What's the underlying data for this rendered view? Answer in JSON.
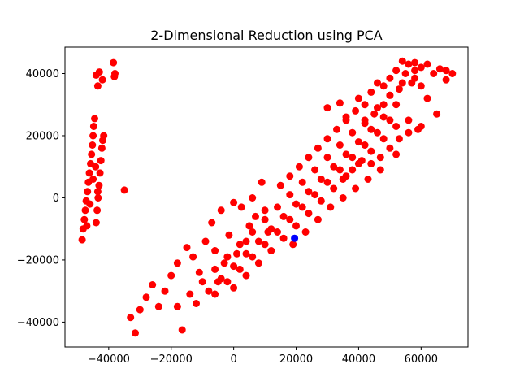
{
  "chart_data": {
    "type": "scatter",
    "title": "2-Dimensional Reduction using PCA",
    "xlabel": "",
    "ylabel": "",
    "xlim": [
      -54000,
      75000
    ],
    "ylim": [
      -48000,
      48500
    ],
    "xticks": [
      -40000,
      -20000,
      0,
      20000,
      40000,
      60000
    ],
    "yticks": [
      -40000,
      -20000,
      0,
      20000,
      40000
    ],
    "grid": false,
    "series": [
      {
        "color": "#ff0000",
        "points": [
          [
            -48500,
            -13500
          ],
          [
            -48200,
            -10000
          ],
          [
            -47800,
            -7000
          ],
          [
            -47500,
            -4000
          ],
          [
            -47200,
            -1000
          ],
          [
            -46800,
            2000
          ],
          [
            -46500,
            5000
          ],
          [
            -46200,
            8000
          ],
          [
            -45800,
            11000
          ],
          [
            -45500,
            14000
          ],
          [
            -45200,
            17000
          ],
          [
            -45000,
            20000
          ],
          [
            -44800,
            23000
          ],
          [
            -44500,
            25500
          ],
          [
            -44000,
            -8000
          ],
          [
            -43700,
            -4000
          ],
          [
            -43400,
            0
          ],
          [
            -43100,
            4000
          ],
          [
            -42800,
            8000
          ],
          [
            -42500,
            12000
          ],
          [
            -42200,
            16000
          ],
          [
            -41900,
            18500
          ],
          [
            -41600,
            20000
          ],
          [
            -47000,
            -9000
          ],
          [
            -46000,
            -2000
          ],
          [
            -45000,
            6000
          ],
          [
            -44200,
            10000
          ],
          [
            -43500,
            2000
          ],
          [
            -44000,
            39500
          ],
          [
            -43500,
            36000
          ],
          [
            -43000,
            40500
          ],
          [
            -42000,
            38000
          ],
          [
            -38500,
            43500
          ],
          [
            -38000,
            40000
          ],
          [
            -38200,
            39000
          ],
          [
            -35000,
            2500
          ],
          [
            -33000,
            -38500
          ],
          [
            -31500,
            -43500
          ],
          [
            -30000,
            -36000
          ],
          [
            -28000,
            -32000
          ],
          [
            -26000,
            -28000
          ],
          [
            -24000,
            -35000
          ],
          [
            -22000,
            -30000
          ],
          [
            -20000,
            -25000
          ],
          [
            -18000,
            -21000
          ],
          [
            -16500,
            -42500
          ],
          [
            -15000,
            -16000
          ],
          [
            -13000,
            -19000
          ],
          [
            -11000,
            -24000
          ],
          [
            -9000,
            -14000
          ],
          [
            -7000,
            -8000
          ],
          [
            -6000,
            -17000
          ],
          [
            -5000,
            -27000
          ],
          [
            -4000,
            -4000
          ],
          [
            -3000,
            -21000
          ],
          [
            -1500,
            -12000
          ],
          [
            0,
            -1500
          ],
          [
            1000,
            -18000
          ],
          [
            2500,
            -3000
          ],
          [
            4000,
            -14000
          ],
          [
            5000,
            -9000
          ],
          [
            6000,
            0
          ],
          [
            7000,
            -6000
          ],
          [
            9000,
            5000
          ],
          [
            10000,
            -4000
          ],
          [
            11000,
            -11000
          ],
          [
            -18000,
            -35000
          ],
          [
            -14000,
            -31000
          ],
          [
            -10000,
            -27000
          ],
          [
            -6000,
            -23000
          ],
          [
            -2000,
            -19000
          ],
          [
            2000,
            -15000
          ],
          [
            6000,
            -11000
          ],
          [
            10000,
            -7000
          ],
          [
            14000,
            -3000
          ],
          [
            18000,
            1000
          ],
          [
            22000,
            5000
          ],
          [
            26000,
            9000
          ],
          [
            30000,
            13000
          ],
          [
            34000,
            17000
          ],
          [
            38000,
            21000
          ],
          [
            42000,
            25000
          ],
          [
            46000,
            29000
          ],
          [
            50000,
            33000
          ],
          [
            54000,
            37000
          ],
          [
            58000,
            41000
          ],
          [
            -12000,
            -34000
          ],
          [
            -8000,
            -30000
          ],
          [
            -4000,
            -26000
          ],
          [
            0,
            -22000
          ],
          [
            4000,
            -18000
          ],
          [
            8000,
            -14000
          ],
          [
            12000,
            -10000
          ],
          [
            16000,
            -6000
          ],
          [
            20000,
            -2000
          ],
          [
            24000,
            2000
          ],
          [
            28000,
            6000
          ],
          [
            32000,
            10000
          ],
          [
            36000,
            14000
          ],
          [
            40000,
            18000
          ],
          [
            44000,
            22000
          ],
          [
            48000,
            26000
          ],
          [
            52000,
            30000
          ],
          [
            -6000,
            -31000
          ],
          [
            -2000,
            -27000
          ],
          [
            2000,
            -23000
          ],
          [
            6000,
            -19000
          ],
          [
            10000,
            -15000
          ],
          [
            14000,
            -11000
          ],
          [
            18000,
            -7000
          ],
          [
            22000,
            -3000
          ],
          [
            26000,
            1000
          ],
          [
            30000,
            5000
          ],
          [
            34000,
            9000
          ],
          [
            38000,
            13000
          ],
          [
            42000,
            17000
          ],
          [
            46000,
            21000
          ],
          [
            50000,
            25000
          ],
          [
            0,
            -29000
          ],
          [
            4000,
            -25000
          ],
          [
            8000,
            -21000
          ],
          [
            12000,
            -17000
          ],
          [
            16000,
            -13000
          ],
          [
            20000,
            -9000
          ],
          [
            24000,
            -5000
          ],
          [
            28000,
            -1000
          ],
          [
            32000,
            3000
          ],
          [
            36000,
            7000
          ],
          [
            40000,
            11000
          ],
          [
            44000,
            15000
          ],
          [
            48000,
            19000
          ],
          [
            15000,
            4000
          ],
          [
            18000,
            7000
          ],
          [
            21000,
            10000
          ],
          [
            24000,
            13000
          ],
          [
            27000,
            16000
          ],
          [
            30000,
            19000
          ],
          [
            33000,
            22000
          ],
          [
            36000,
            25000
          ],
          [
            39000,
            28000
          ],
          [
            42000,
            24000
          ],
          [
            45000,
            27000
          ],
          [
            48000,
            30000
          ],
          [
            52000,
            23000
          ],
          [
            56000,
            25000
          ],
          [
            59000,
            22000
          ],
          [
            60000,
            23000
          ],
          [
            35000,
            6000
          ],
          [
            38000,
            9000
          ],
          [
            41000,
            12000
          ],
          [
            44000,
            11000
          ],
          [
            47000,
            13000
          ],
          [
            50000,
            16000
          ],
          [
            53000,
            19000
          ],
          [
            56000,
            21000
          ],
          [
            52000,
            14000
          ],
          [
            47000,
            9000
          ],
          [
            43000,
            6000
          ],
          [
            39000,
            3000
          ],
          [
            35000,
            0
          ],
          [
            31000,
            -3000
          ],
          [
            27000,
            -7000
          ],
          [
            23000,
            -11000
          ],
          [
            19000,
            -15000
          ],
          [
            30000,
            29000
          ],
          [
            34000,
            30500
          ],
          [
            36000,
            26000
          ],
          [
            40000,
            32000
          ],
          [
            42000,
            30000
          ],
          [
            44000,
            34000
          ],
          [
            46000,
            37000
          ],
          [
            48000,
            36000
          ],
          [
            50000,
            38500
          ],
          [
            52000,
            41000
          ],
          [
            54000,
            44000
          ],
          [
            56000,
            43000
          ],
          [
            58000,
            43500
          ],
          [
            60000,
            42000
          ],
          [
            62000,
            43000
          ],
          [
            64000,
            40000
          ],
          [
            66000,
            41500
          ],
          [
            68000,
            41000
          ],
          [
            70000,
            40000
          ],
          [
            68000,
            38000
          ],
          [
            55000,
            40000
          ],
          [
            50000,
            33000
          ],
          [
            53000,
            35000
          ],
          [
            57000,
            37000
          ],
          [
            60000,
            36000
          ],
          [
            62000,
            32000
          ],
          [
            65000,
            27000
          ],
          [
            58000,
            38500
          ]
        ]
      },
      {
        "color": "#0000ff",
        "points": [
          [
            19500,
            -13000
          ]
        ]
      }
    ]
  }
}
